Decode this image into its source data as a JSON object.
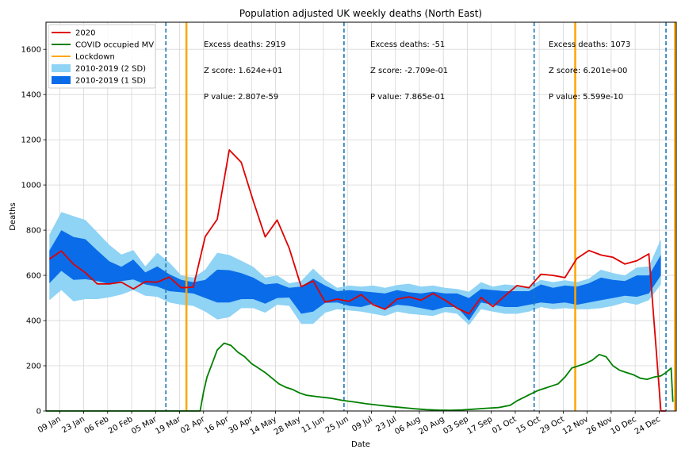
{
  "chart_data": {
    "type": "line",
    "title": "Population adjusted UK weekly deaths (North East)",
    "xlabel": "Date",
    "ylabel": "Deaths",
    "x_range": [
      "2020-01-01",
      "2021-01-03"
    ],
    "ylim": [
      0,
      1720
    ],
    "y_ticks": [
      0,
      200,
      400,
      600,
      800,
      1000,
      1200,
      1400,
      1600
    ],
    "x_ticks": [
      {
        "date": "2020-01-09",
        "label": "09 Jan"
      },
      {
        "date": "2020-01-23",
        "label": "23 Jan"
      },
      {
        "date": "2020-02-06",
        "label": "06 Feb"
      },
      {
        "date": "2020-02-20",
        "label": "20 Feb"
      },
      {
        "date": "2020-03-05",
        "label": "05 Mar"
      },
      {
        "date": "2020-03-19",
        "label": "19 Mar"
      },
      {
        "date": "2020-04-02",
        "label": "02 Apr"
      },
      {
        "date": "2020-04-16",
        "label": "16 Apr"
      },
      {
        "date": "2020-04-30",
        "label": "30 Apr"
      },
      {
        "date": "2020-05-14",
        "label": "14 May"
      },
      {
        "date": "2020-05-28",
        "label": "28 May"
      },
      {
        "date": "2020-06-11",
        "label": "11 Jun"
      },
      {
        "date": "2020-06-25",
        "label": "25 Jun"
      },
      {
        "date": "2020-07-09",
        "label": "09 Jul"
      },
      {
        "date": "2020-07-23",
        "label": "23 Jul"
      },
      {
        "date": "2020-08-06",
        "label": "06 Aug"
      },
      {
        "date": "2020-08-20",
        "label": "20 Aug"
      },
      {
        "date": "2020-09-03",
        "label": "03 Sep"
      },
      {
        "date": "2020-09-17",
        "label": "17 Sep"
      },
      {
        "date": "2020-10-01",
        "label": "01 Oct"
      },
      {
        "date": "2020-10-15",
        "label": "15 Oct"
      },
      {
        "date": "2020-10-29",
        "label": "29 Oct"
      },
      {
        "date": "2020-11-12",
        "label": "12 Nov"
      },
      {
        "date": "2020-11-26",
        "label": "26 Nov"
      },
      {
        "date": "2020-12-10",
        "label": "10 Dec"
      },
      {
        "date": "2020-12-24",
        "label": "24 Dec"
      }
    ],
    "grid": true,
    "legend_position": "top-left",
    "legend": [
      {
        "label": "2020",
        "kind": "line",
        "color": "#e00000"
      },
      {
        "label": "COVID occupied MV",
        "kind": "line",
        "color": "#008000"
      },
      {
        "label": "Lockdown",
        "kind": "line",
        "color": "#ffa500"
      },
      {
        "label": "2010-2019 (2 SD)",
        "kind": "patch",
        "color": "#8fd3f5"
      },
      {
        "label": "2010-2019 (1 SD)",
        "kind": "patch",
        "color": "#0a6ce8"
      }
    ],
    "bands": {
      "x": [
        "2020-01-03",
        "2020-01-10",
        "2020-01-17",
        "2020-01-24",
        "2020-01-31",
        "2020-02-07",
        "2020-02-14",
        "2020-02-21",
        "2020-02-28",
        "2020-03-06",
        "2020-03-13",
        "2020-03-20",
        "2020-03-27",
        "2020-04-03",
        "2020-04-10",
        "2020-04-17",
        "2020-04-24",
        "2020-05-01",
        "2020-05-08",
        "2020-05-15",
        "2020-05-22",
        "2020-05-29",
        "2020-06-05",
        "2020-06-12",
        "2020-06-19",
        "2020-06-26",
        "2020-07-03",
        "2020-07-10",
        "2020-07-17",
        "2020-07-24",
        "2020-07-31",
        "2020-08-07",
        "2020-08-14",
        "2020-08-21",
        "2020-08-28",
        "2020-09-04",
        "2020-09-11",
        "2020-09-18",
        "2020-09-25",
        "2020-10-02",
        "2020-10-09",
        "2020-10-16",
        "2020-10-23",
        "2020-10-30",
        "2020-11-06",
        "2020-11-13",
        "2020-11-20",
        "2020-11-27",
        "2020-12-04",
        "2020-12-11",
        "2020-12-18",
        "2020-12-25"
      ],
      "outer_upper": [
        780,
        880,
        862,
        845,
        790,
        735,
        692,
        712,
        640,
        700,
        657,
        600,
        590,
        625,
        700,
        690,
        665,
        638,
        590,
        600,
        565,
        575,
        630,
        580,
        545,
        555,
        550,
        555,
        545,
        557,
        563,
        550,
        555,
        545,
        540,
        528,
        570,
        550,
        560,
        555,
        550,
        580,
        570,
        578,
        570,
        585,
        625,
        610,
        600,
        635,
        640,
        760
      ],
      "inner_upper": [
        710,
        800,
        770,
        760,
        710,
        662,
        638,
        670,
        613,
        640,
        605,
        580,
        570,
        580,
        625,
        623,
        610,
        590,
        560,
        565,
        545,
        550,
        585,
        555,
        530,
        535,
        530,
        525,
        520,
        535,
        525,
        520,
        528,
        520,
        520,
        500,
        540,
        535,
        530,
        530,
        530,
        560,
        545,
        555,
        550,
        565,
        590,
        580,
        575,
        600,
        600,
        690
      ],
      "inner_lower": [
        565,
        620,
        580,
        583,
        575,
        562,
        575,
        582,
        560,
        550,
        530,
        525,
        520,
        500,
        480,
        480,
        495,
        495,
        475,
        500,
        502,
        430,
        440,
        478,
        480,
        465,
        460,
        475,
        450,
        470,
        465,
        455,
        445,
        460,
        460,
        400,
        480,
        470,
        460,
        460,
        470,
        480,
        475,
        480,
        470,
        480,
        490,
        500,
        510,
        505,
        520,
        600
      ],
      "outer_lower": [
        490,
        535,
        485,
        495,
        495,
        503,
        515,
        535,
        510,
        505,
        480,
        470,
        465,
        440,
        405,
        415,
        455,
        455,
        435,
        470,
        465,
        385,
        385,
        435,
        450,
        445,
        440,
        430,
        420,
        440,
        430,
        425,
        420,
        438,
        430,
        380,
        450,
        440,
        430,
        430,
        440,
        460,
        450,
        455,
        450,
        450,
        455,
        465,
        480,
        470,
        490,
        560
      ]
    },
    "series": [
      {
        "name": "2020",
        "color": "#e00000",
        "x": [
          "2020-01-03",
          "2020-01-10",
          "2020-01-17",
          "2020-01-24",
          "2020-01-31",
          "2020-02-07",
          "2020-02-14",
          "2020-02-21",
          "2020-02-28",
          "2020-03-06",
          "2020-03-13",
          "2020-03-20",
          "2020-03-27",
          "2020-04-03",
          "2020-04-10",
          "2020-04-17",
          "2020-04-24",
          "2020-05-01",
          "2020-05-08",
          "2020-05-15",
          "2020-05-22",
          "2020-05-29",
          "2020-06-05",
          "2020-06-12",
          "2020-06-19",
          "2020-06-26",
          "2020-07-03",
          "2020-07-10",
          "2020-07-17",
          "2020-07-24",
          "2020-07-31",
          "2020-08-07",
          "2020-08-14",
          "2020-08-21",
          "2020-08-28",
          "2020-09-04",
          "2020-09-11",
          "2020-09-18",
          "2020-09-25",
          "2020-10-02",
          "2020-10-09",
          "2020-10-16",
          "2020-10-23",
          "2020-10-30",
          "2020-11-06",
          "2020-11-13",
          "2020-11-20",
          "2020-11-27",
          "2020-12-04",
          "2020-12-11",
          "2020-12-18",
          "2020-12-25",
          "2020-12-28"
        ],
        "values": [
          672,
          708,
          650,
          612,
          562,
          562,
          570,
          540,
          572,
          570,
          592,
          545,
          548,
          772,
          848,
          1155,
          1100,
          930,
          770,
          845,
          720,
          550,
          575,
          482,
          495,
          485,
          515,
          470,
          450,
          495,
          505,
          490,
          520,
          490,
          455,
          430,
          502,
          462,
          510,
          555,
          545,
          605,
          600,
          590,
          675,
          710,
          690,
          680,
          650,
          665,
          695,
          0,
          0
        ]
      },
      {
        "name": "COVID occupied MV",
        "color": "#008000",
        "x": [
          "2020-01-01",
          "2020-03-31",
          "2020-04-02",
          "2020-04-04",
          "2020-04-07",
          "2020-04-10",
          "2020-04-14",
          "2020-04-18",
          "2020-04-22",
          "2020-04-26",
          "2020-04-30",
          "2020-05-04",
          "2020-05-08",
          "2020-05-12",
          "2020-05-16",
          "2020-05-20",
          "2020-05-24",
          "2020-05-28",
          "2020-06-01",
          "2020-06-08",
          "2020-06-15",
          "2020-06-22",
          "2020-06-29",
          "2020-07-06",
          "2020-07-13",
          "2020-07-20",
          "2020-07-27",
          "2020-08-03",
          "2020-08-10",
          "2020-08-17",
          "2020-08-24",
          "2020-08-31",
          "2020-09-07",
          "2020-09-14",
          "2020-09-21",
          "2020-09-28",
          "2020-10-02",
          "2020-10-06",
          "2020-10-10",
          "2020-10-14",
          "2020-10-18",
          "2020-10-22",
          "2020-10-26",
          "2020-10-30",
          "2020-11-03",
          "2020-11-07",
          "2020-11-11",
          "2020-11-15",
          "2020-11-19",
          "2020-11-23",
          "2020-11-27",
          "2020-12-01",
          "2020-12-05",
          "2020-12-09",
          "2020-12-13",
          "2020-12-17",
          "2020-12-21",
          "2020-12-25",
          "2020-12-28",
          "2020-12-31",
          "2021-01-01"
        ],
        "values": [
          0,
          0,
          85,
          150,
          210,
          270,
          300,
          290,
          260,
          240,
          210,
          190,
          170,
          145,
          120,
          105,
          95,
          80,
          70,
          63,
          57,
          47,
          40,
          32,
          26,
          20,
          15,
          10,
          6,
          4,
          3,
          5,
          8,
          12,
          15,
          25,
          45,
          60,
          75,
          90,
          100,
          110,
          120,
          150,
          190,
          200,
          210,
          225,
          250,
          240,
          200,
          180,
          170,
          160,
          145,
          140,
          150,
          155,
          170,
          190,
          40
        ]
      }
    ],
    "lockdown_dates": [
      "2020-03-23",
      "2020-11-05",
      "2021-01-05"
    ],
    "period_dividers": [
      "2020-03-11",
      "2020-06-23",
      "2020-10-12",
      "2020-12-28"
    ],
    "annotations": [
      {
        "excess": "Excess deaths: 2919",
        "z": "Z score: 1.624e+01",
        "p": "P value: 2.807e-59"
      },
      {
        "excess": "Excess deaths: -51",
        "z": "Z score: -2.709e-01",
        "p": "P value: 7.865e-01"
      },
      {
        "excess": "Excess deaths: 1073",
        "z": "Z score: 6.201e+00",
        "p": "P value: 5.599e-10"
      }
    ]
  }
}
